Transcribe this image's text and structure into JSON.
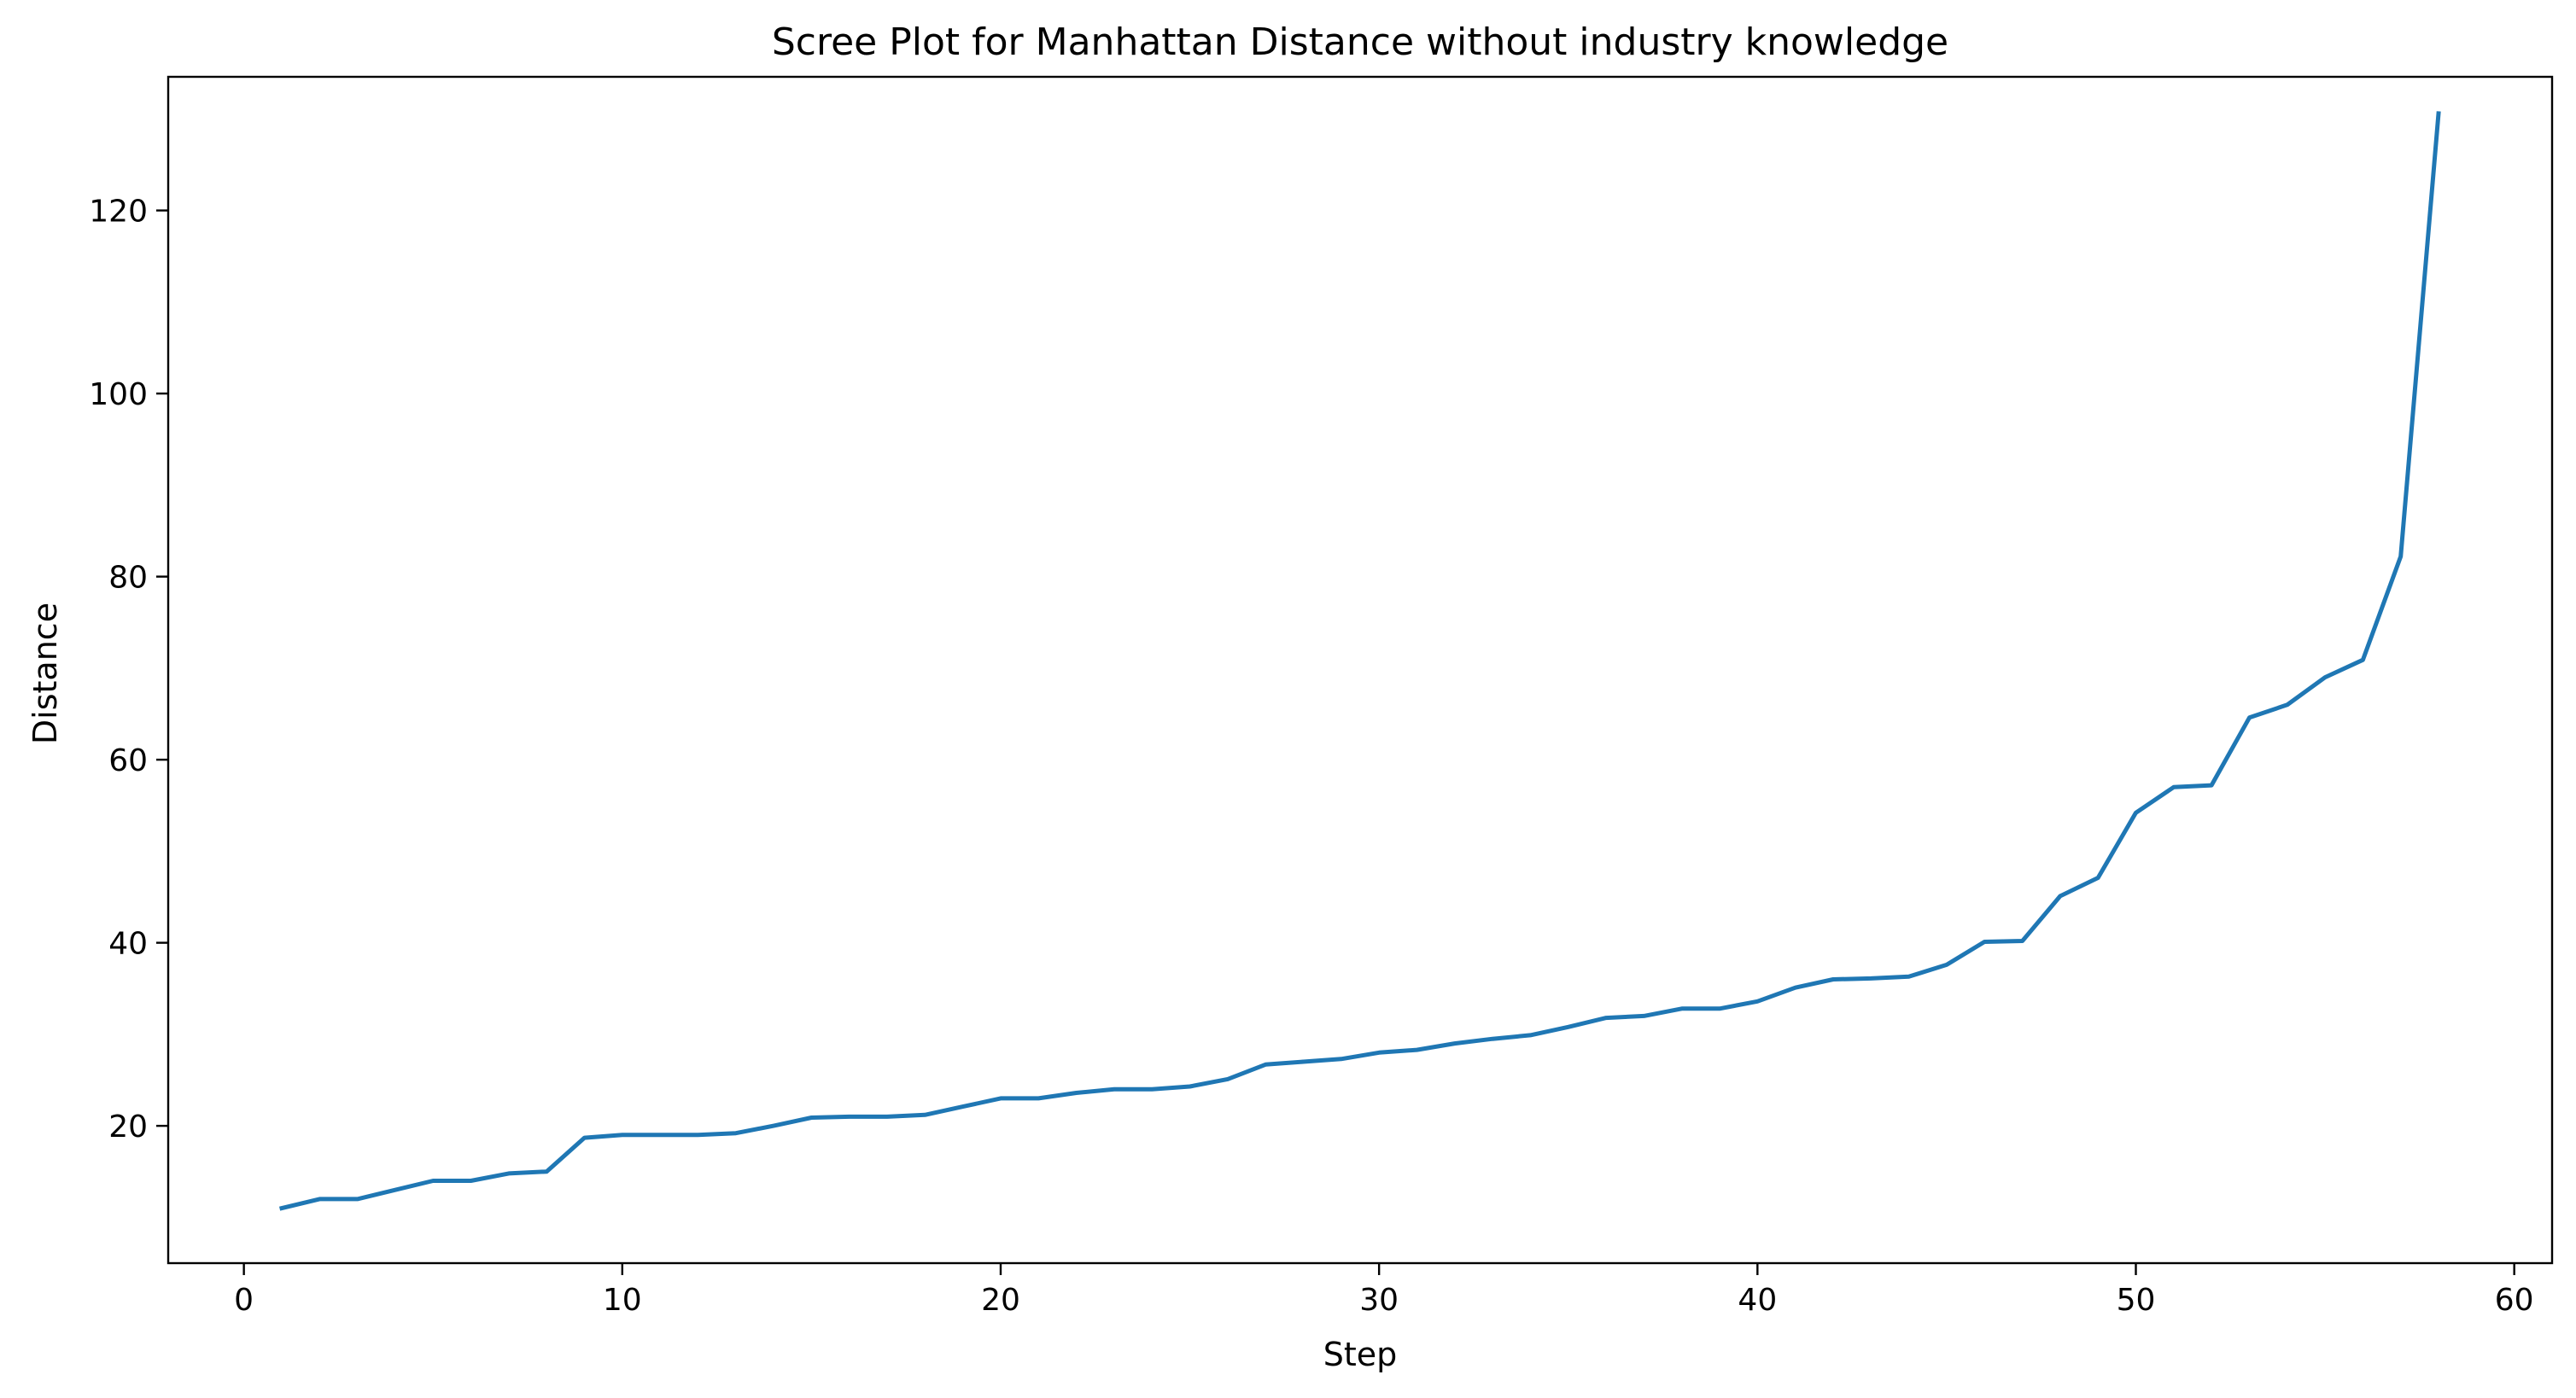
{
  "chart_data": {
    "type": "line",
    "title": "Scree Plot for Manhattan Distance without industry knowledge",
    "xlabel": "Step",
    "ylabel": "Distance",
    "xlim": [
      -2,
      61
    ],
    "ylim": [
      5,
      134.6
    ],
    "xticks": [
      0,
      10,
      20,
      30,
      40,
      50,
      60
    ],
    "yticks": [
      20,
      40,
      60,
      80,
      100,
      120
    ],
    "grid": false,
    "legend": "none",
    "series": [
      {
        "color": "#1f77b4",
        "x": [
          1,
          2,
          3,
          4,
          5,
          6,
          7,
          8,
          9,
          10,
          11,
          12,
          13,
          14,
          15,
          16,
          17,
          18,
          19,
          20,
          21,
          22,
          23,
          24,
          25,
          26,
          27,
          28,
          29,
          30,
          31,
          32,
          33,
          34,
          35,
          36,
          37,
          38,
          39,
          40,
          41,
          42,
          43,
          44,
          45,
          46,
          47,
          48,
          49,
          50,
          51,
          52,
          53,
          54,
          55,
          56,
          57,
          58
        ],
        "y": [
          11.0,
          12.0,
          12.0,
          13.0,
          14.0,
          14.0,
          14.8,
          15.0,
          18.7,
          19.0,
          19.0,
          19.0,
          19.2,
          20.0,
          20.9,
          21.0,
          21.0,
          21.2,
          22.1,
          23.0,
          23.0,
          23.6,
          24.0,
          24.0,
          24.3,
          25.1,
          26.7,
          27.0,
          27.3,
          28.0,
          28.3,
          29.0,
          29.5,
          29.9,
          30.8,
          31.8,
          32.0,
          32.8,
          32.8,
          33.6,
          35.1,
          36.0,
          36.1,
          36.3,
          37.6,
          40.1,
          40.2,
          45.1,
          47.1,
          54.2,
          57.0,
          57.2,
          64.6,
          66.0,
          69.0,
          70.9,
          82.2,
          130.6
        ]
      }
    ]
  }
}
